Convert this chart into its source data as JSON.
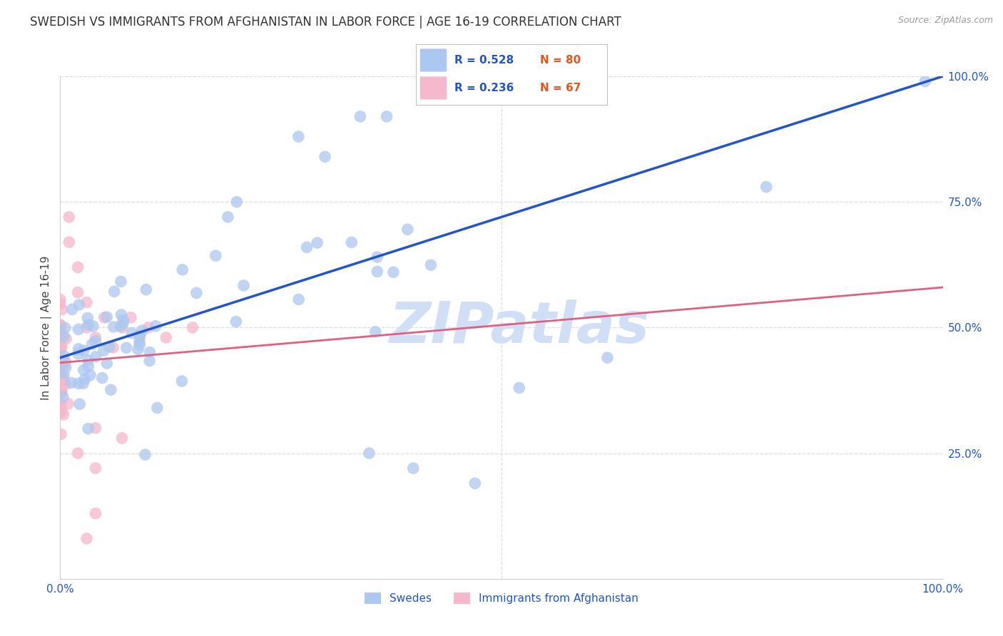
{
  "title": "SWEDISH VS IMMIGRANTS FROM AFGHANISTAN IN LABOR FORCE | AGE 16-19 CORRELATION CHART",
  "source": "Source: ZipAtlas.com",
  "ylabel": "In Labor Force | Age 16-19",
  "xlim": [
    0,
    1
  ],
  "ylim": [
    0,
    1
  ],
  "swedes_color": "#adc8f0",
  "swedes_edge_color": "#adc8f0",
  "afghan_color": "#f5b8cc",
  "afghan_edge_color": "#f5b8cc",
  "swedes_line_color": "#2255cc",
  "afghan_line_color": "#e06080",
  "watermark_color": "#d0dff5",
  "R_swedes": 0.528,
  "N_swedes": 80,
  "R_afghan": 0.236,
  "N_afghan": 67,
  "legend_text_color": "#2255cc",
  "n_color": "#e05820",
  "background_color": "#ffffff",
  "grid_color": "#d8dfe8",
  "title_fontsize": 12,
  "axis_label_fontsize": 11,
  "tick_fontsize": 11,
  "marker_size": 12,
  "swedes_line_intercept": 0.44,
  "swedes_line_slope": 0.56,
  "afghan_line_intercept": 0.43,
  "afghan_line_slope": 0.15
}
